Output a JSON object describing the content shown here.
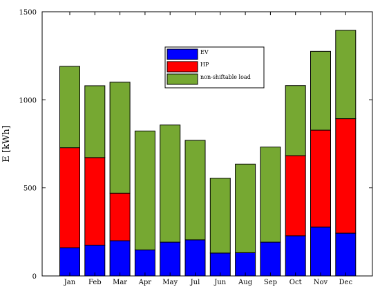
{
  "chart_data": {
    "type": "bar",
    "stacked": true,
    "categories": [
      "Jan",
      "Feb",
      "Mar",
      "Apr",
      "May",
      "Jul",
      "Jun",
      "Aug",
      "Sep",
      "Oct",
      "Nov",
      "Dec"
    ],
    "series": [
      {
        "name": "EV",
        "color": "#0000ff",
        "values": [
          160,
          175,
          200,
          148,
          192,
          205,
          130,
          132,
          192,
          228,
          278,
          243
        ]
      },
      {
        "name": "HP",
        "color": "#ff0000",
        "values": [
          568,
          497,
          270,
          0,
          0,
          0,
          0,
          0,
          0,
          455,
          550,
          650
        ]
      },
      {
        "name": "non-shiftable load",
        "color": "#76a832",
        "values": [
          462,
          408,
          630,
          675,
          665,
          565,
          425,
          503,
          540,
          398,
          447,
          502
        ]
      }
    ],
    "ylabel": "E [kWh]",
    "ylim": [
      0,
      1500
    ],
    "yticks": [
      0,
      500,
      1000,
      1500
    ],
    "grid": false,
    "legend_position": "top-center"
  }
}
